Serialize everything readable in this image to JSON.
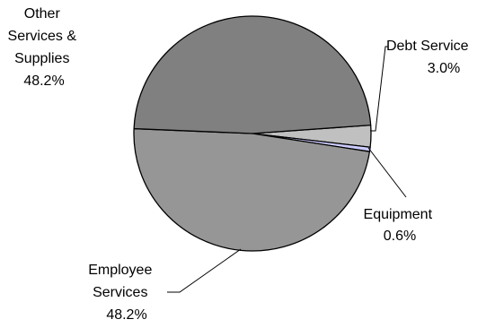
{
  "chart_data": {
    "type": "pie",
    "title": "",
    "start_angle_deg": -4.1,
    "direction": "clockwise",
    "slices": [
      {
        "name_lines": [
          "Debt Service"
        ],
        "value_label": "3.0%",
        "value": 3.0,
        "color": "#c0c0c0"
      },
      {
        "name_lines": [
          "Equipment"
        ],
        "value_label": "0.6%",
        "value": 0.6,
        "color": "#ccccff"
      },
      {
        "name_lines": [
          "Employee",
          "Services"
        ],
        "value_label": "48.2%",
        "value": 48.2,
        "color": "#969696"
      },
      {
        "name_lines": [
          "Other",
          "Services &",
          "Supplies"
        ],
        "value_label": "48.2%",
        "value": 48.2,
        "color": "#808080"
      }
    ]
  }
}
